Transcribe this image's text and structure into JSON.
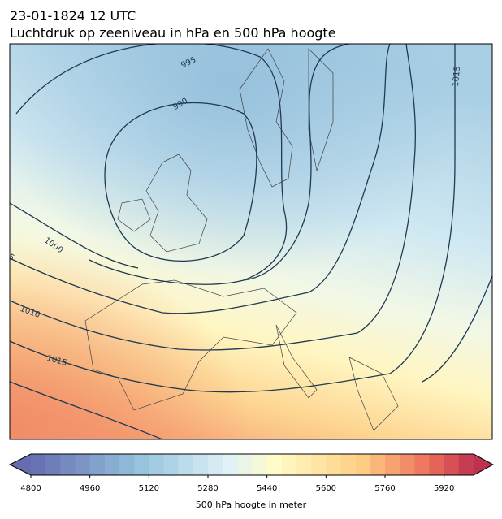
{
  "header": {
    "title": "23-01-1824 12 UTC",
    "subtitle": "Luchtdruk op zeeniveau in hPa en 500 hPa hoogte"
  },
  "map": {
    "contour_labels": [
      995,
      990,
      1000,
      1010,
      1015,
      1015
    ],
    "partial_label": "5"
  },
  "colorbar": {
    "lim": [
      4800,
      6000
    ],
    "ticks": [
      4800,
      4960,
      5120,
      5280,
      5440,
      5600,
      5760,
      5920
    ],
    "label": "500 hPa hoogte in meter"
  }
}
